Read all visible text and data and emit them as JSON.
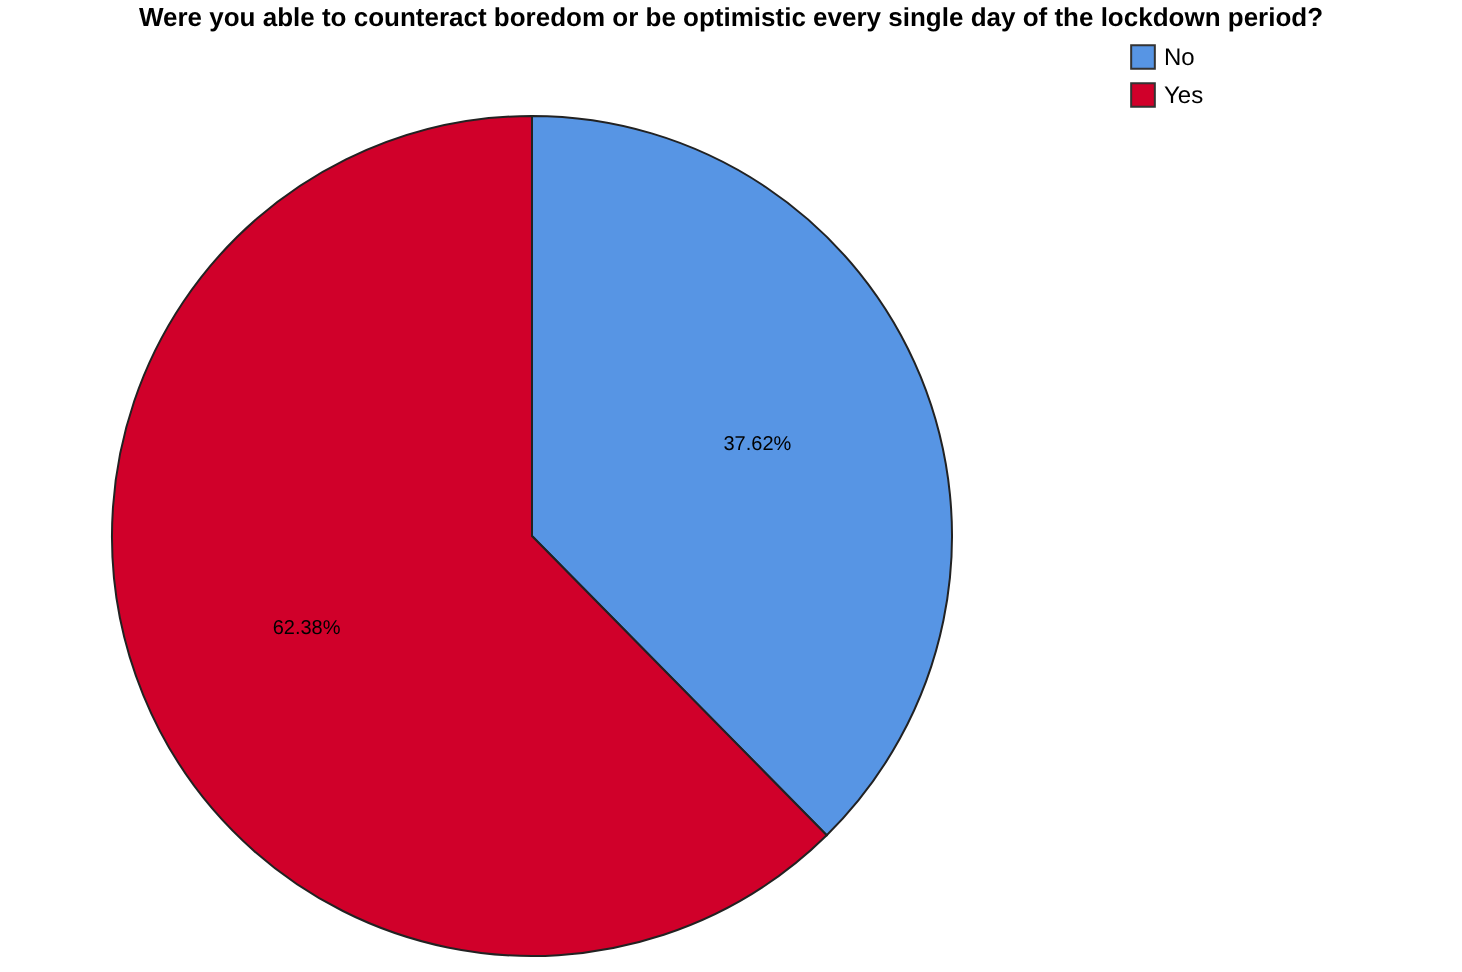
{
  "chart_data": {
    "type": "pie",
    "title": "Were you able to counteract boredom or be optimistic every single day of the lockdown period?",
    "categories": [
      "No",
      "Yes"
    ],
    "values": [
      37.62,
      62.38
    ],
    "colors": [
      "#5795e4",
      "#d0002a"
    ],
    "value_labels": [
      "37.62%",
      "62.38%"
    ],
    "legend": "top right"
  }
}
